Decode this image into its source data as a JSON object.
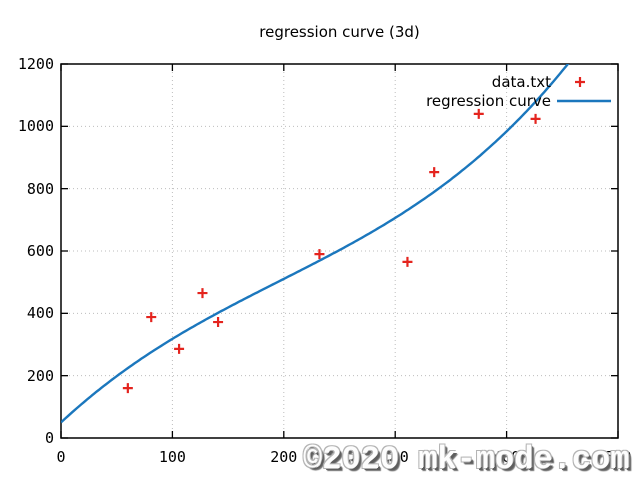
{
  "watermark": "©2020 mk-mode.com",
  "chart_data": {
    "type": "scatter",
    "title": "regression curve (3d)",
    "xlabel": "",
    "ylabel": "",
    "xlim": [
      0,
      500
    ],
    "ylim": [
      0,
      1200
    ],
    "x_ticks": [
      0,
      100,
      200,
      300,
      400,
      500
    ],
    "y_ticks": [
      0,
      200,
      400,
      600,
      800,
      1000,
      1200
    ],
    "grid": true,
    "grid_style": "dotted",
    "legend_position": "top-right-inside",
    "colors": {
      "points": "#e4241e",
      "line": "#1b77bd",
      "grid": "#bdbdbd",
      "border": "#000000"
    },
    "series": [
      {
        "name": "data.txt",
        "type": "scatter",
        "marker": "plus",
        "color": "#e4241e",
        "points": [
          [
            60,
            160
          ],
          [
            81,
            388
          ],
          [
            106,
            286
          ],
          [
            127,
            465
          ],
          [
            141,
            372
          ],
          [
            232,
            590
          ],
          [
            311,
            565
          ],
          [
            335,
            853
          ],
          [
            375,
            1040
          ],
          [
            426,
            1024
          ]
        ]
      },
      {
        "name": "regression curve",
        "type": "line",
        "color": "#1b77bd",
        "model": "cubic",
        "coefficients": {
          "a": 50,
          "b": 3.3201,
          "c": -0.0077133,
          "d": 1.3124e-05
        },
        "x_range": [
          0,
          500
        ]
      }
    ]
  }
}
